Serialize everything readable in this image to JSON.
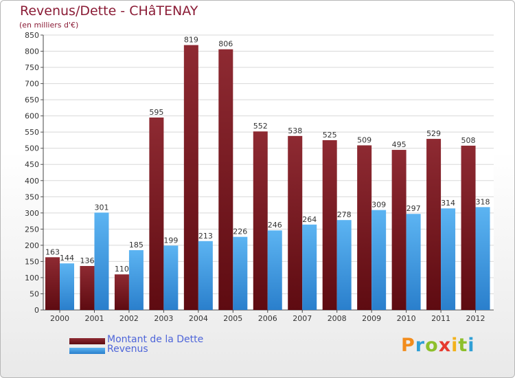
{
  "title": "Revenus/Dette - CHâTENAY",
  "subtitle": "(en milliers d'€)",
  "logo": {
    "text": "Proxiti",
    "letters": [
      {
        "ch": "P",
        "color": "#f28c1c"
      },
      {
        "ch": "r",
        "color": "#2f9fd6"
      },
      {
        "ch": "o",
        "color": "#8dbf2b"
      },
      {
        "ch": "x",
        "color": "#e63a2e"
      },
      {
        "ch": "i",
        "color": "#f2b21c"
      },
      {
        "ch": "t",
        "color": "#8dbf2b"
      },
      {
        "ch": "i",
        "color": "#2f9fd6"
      }
    ]
  },
  "colors": {
    "title": "#8a1b35",
    "debt_top": "#8e2a32",
    "debt_bottom": "#5e0b11",
    "revenue_top": "#5cb4f2",
    "revenue_bottom": "#2a7fcc",
    "legend_text": "#4e65d9",
    "grid": "#d8d8d8"
  },
  "chart_data": {
    "type": "bar",
    "title": "Revenus/Dette - CHâTENAY",
    "subtitle": "(en milliers d'€)",
    "categories": [
      "2000",
      "2001",
      "2002",
      "2003",
      "2004",
      "2005",
      "2006",
      "2007",
      "2008",
      "2009",
      "2010",
      "2011",
      "2012"
    ],
    "series": [
      {
        "name": "Montant de la Dette",
        "values": [
          163,
          136,
          110,
          595,
          819,
          806,
          552,
          538,
          525,
          509,
          495,
          529,
          508
        ]
      },
      {
        "name": "Revenus",
        "values": [
          144,
          301,
          185,
          199,
          213,
          226,
          246,
          264,
          278,
          309,
          297,
          314,
          318
        ]
      }
    ],
    "ylim": [
      0,
      850
    ],
    "yticks": [
      0,
      50,
      100,
      150,
      200,
      250,
      300,
      350,
      400,
      450,
      500,
      550,
      600,
      650,
      700,
      750,
      800,
      850
    ],
    "grid": true,
    "legend_position": "bottom-left"
  }
}
